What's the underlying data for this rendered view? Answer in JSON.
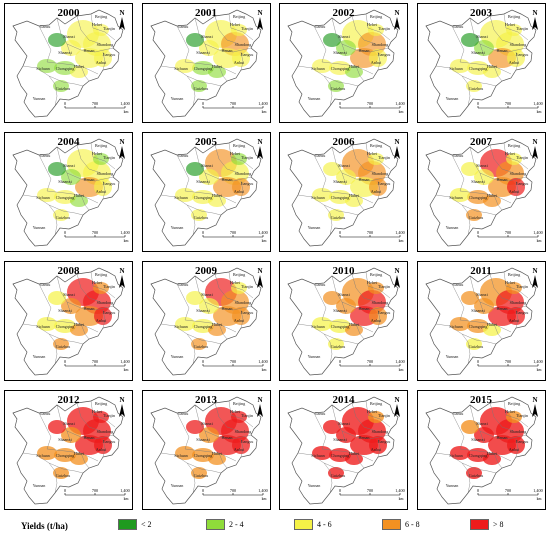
{
  "panels": [
    {
      "year": "2000",
      "level": 0.25
    },
    {
      "year": "2001",
      "level": 0.3
    },
    {
      "year": "2002",
      "level": 0.3
    },
    {
      "year": "2003",
      "level": 0.35
    },
    {
      "year": "2004",
      "level": 0.3
    },
    {
      "year": "2005",
      "level": 0.35
    },
    {
      "year": "2006",
      "level": 0.4
    },
    {
      "year": "2007",
      "level": 0.5
    },
    {
      "year": "2008",
      "level": 0.55
    },
    {
      "year": "2009",
      "level": 0.45
    },
    {
      "year": "2010",
      "level": 0.55
    },
    {
      "year": "2011",
      "level": 0.6
    },
    {
      "year": "2012",
      "level": 0.7
    },
    {
      "year": "2013",
      "level": 0.65
    },
    {
      "year": "2014",
      "level": 0.8
    },
    {
      "year": "2015",
      "level": 0.8
    }
  ],
  "map_labels": [
    "Gansu",
    "Shanxi",
    "Hebei",
    "Beijing",
    "Tianjin",
    "Shandong",
    "Henan",
    "Shaanxi",
    "Jiangsu",
    "Anhui",
    "Hubei",
    "Sichuan",
    "Chongqing",
    "Guizhou",
    "Yunnan"
  ],
  "north_label": "N",
  "scale": {
    "ticks": [
      "0",
      "700",
      "1,400"
    ],
    "unit": "km"
  },
  "legend": {
    "title": "Yields (t/ha)",
    "items": [
      {
        "label": "< 2",
        "color": "#1f9a1f"
      },
      {
        "label": "2 - 4",
        "color": "#8fdc3a"
      },
      {
        "label": "4 - 6",
        "color": "#f5f247"
      },
      {
        "label": "6 - 8",
        "color": "#f39121"
      },
      {
        "label": "> 8",
        "color": "#ee1c1c"
      }
    ]
  }
}
